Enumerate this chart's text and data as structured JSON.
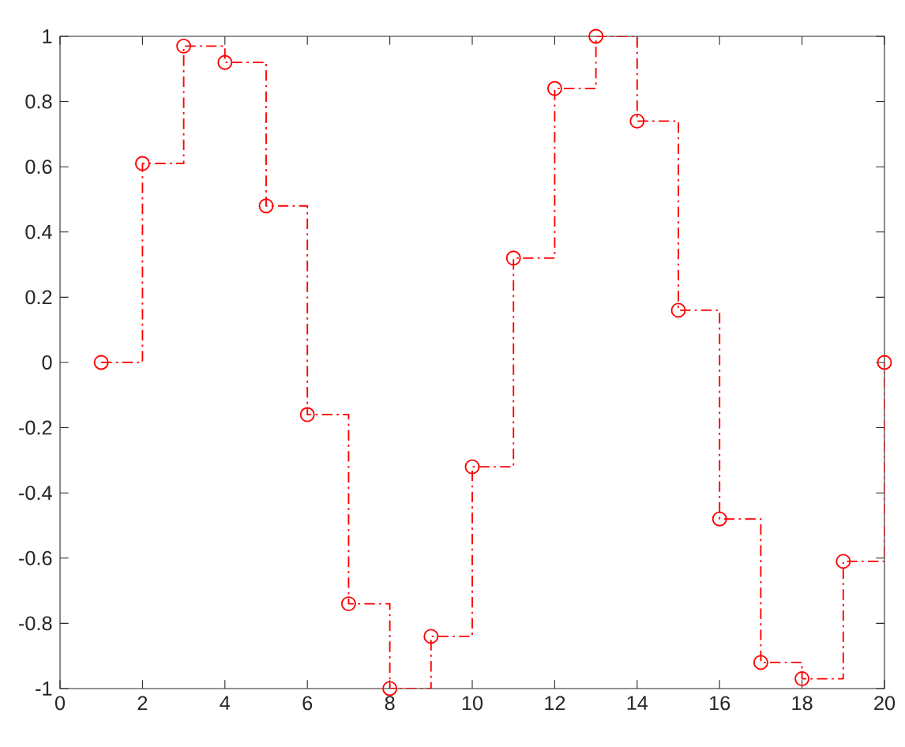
{
  "chart_data": {
    "type": "step",
    "x": [
      1,
      2,
      3,
      4,
      5,
      6,
      7,
      8,
      9,
      10,
      11,
      12,
      13,
      14,
      15,
      16,
      17,
      18,
      19,
      20
    ],
    "series": [
      {
        "color": "#ff0000",
        "values": [
          0,
          0.61,
          0.97,
          0.92,
          0.48,
          -0.16,
          -0.74,
          -1,
          -0.84,
          -0.32,
          0.32,
          0.84,
          1,
          0.74,
          0.16,
          -0.48,
          -0.92,
          -0.97,
          -0.61,
          0
        ]
      }
    ],
    "xlim": [
      0,
      20
    ],
    "xticks": [
      0,
      2,
      4,
      6,
      8,
      10,
      12,
      14,
      16,
      18,
      20
    ],
    "ylim": [
      -1,
      1
    ],
    "yticks": [
      -1,
      -0.8,
      -0.6,
      -0.4,
      -0.2,
      0,
      0.2,
      0.4,
      0.6,
      0.8,
      1
    ],
    "marker": "circle",
    "line_style": "dashdot",
    "grid": false
  }
}
